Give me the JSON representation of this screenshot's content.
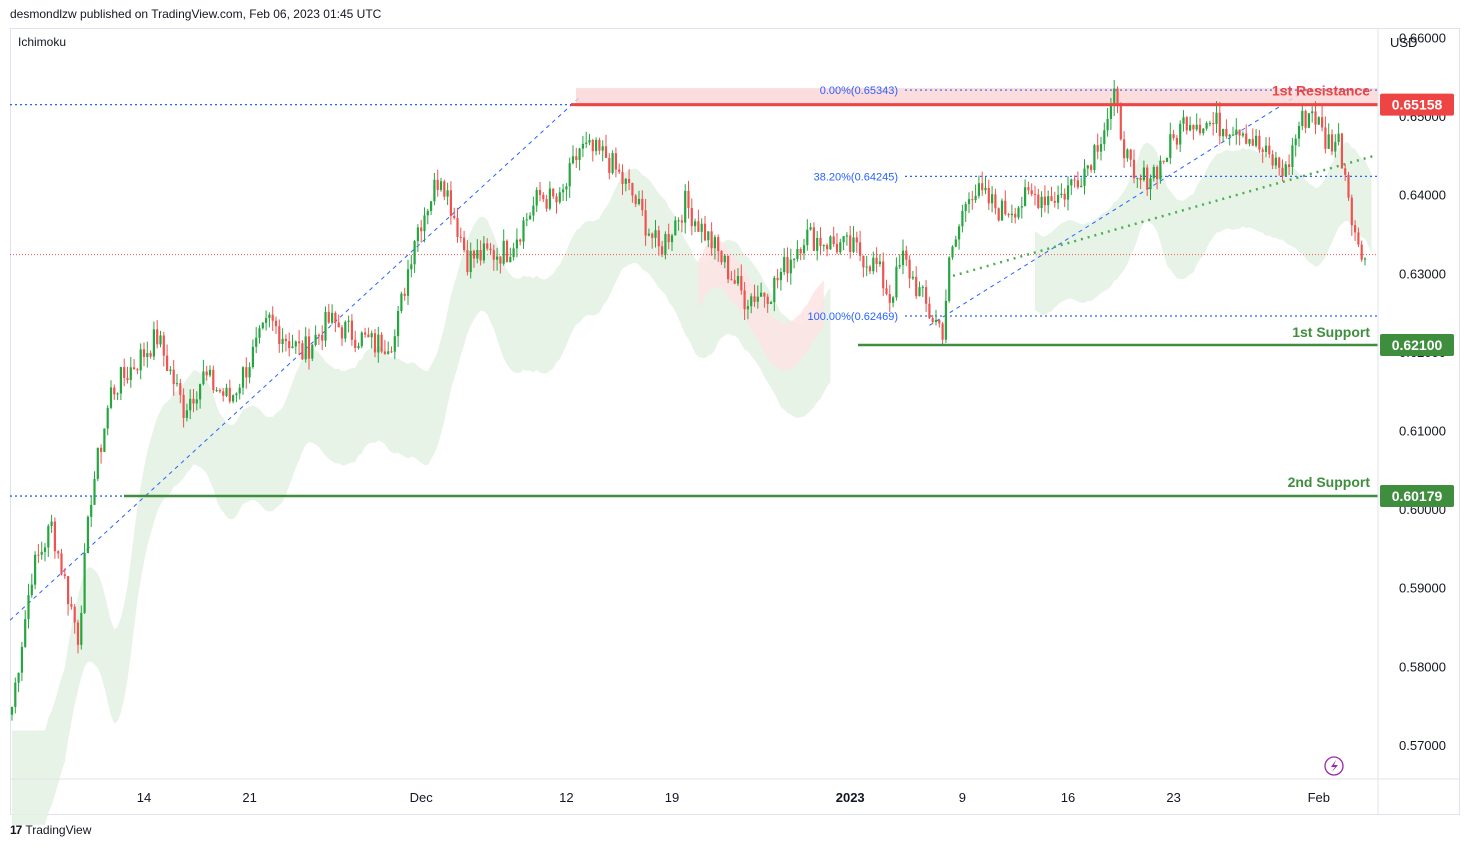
{
  "header": {
    "published_by": "desmondlzw published on TradingView.com, Feb 06, 2023 01:45 UTC"
  },
  "indicator_label": "Ichimoku",
  "currency_label": "USD",
  "footer": {
    "logo_text": "17",
    "brand": "TradingView"
  },
  "colors": {
    "bull": "#26a640",
    "bear": "#ef5350",
    "resistance": "#ef4444",
    "support": "#3e8e3e",
    "fib": "#2962ff",
    "cloud_bull": "#e3f1e3",
    "cloud_bear": "#fde3e3",
    "trend_dotted": "#4caf50"
  },
  "chart_data": {
    "type": "candlestick",
    "title": "",
    "ylabel": "",
    "ylim": [
      0.5658,
      0.6612
    ],
    "y_ticks": [
      "0.66000",
      "0.65000",
      "0.64000",
      "0.63000",
      "0.62000",
      "0.61000",
      "0.60000",
      "0.59000",
      "0.58000",
      "0.57000"
    ],
    "y_tick_values": [
      0.66,
      0.65,
      0.64,
      0.63,
      0.62,
      0.61,
      0.6,
      0.59,
      0.58,
      0.57
    ],
    "x_ticks": [
      "14",
      "21",
      "Dec",
      "12",
      "19",
      "2023",
      "9",
      "16",
      "23",
      "Feb"
    ],
    "x_tick_bars": [
      40,
      72,
      124,
      168,
      200,
      254,
      288,
      320,
      352,
      396
    ],
    "last_price": 0.6325,
    "levels": [
      {
        "name": "1st Resistance",
        "value": 0.65158,
        "label": "0.65158"
      },
      {
        "name": "1st Support",
        "value": 0.621,
        "label": "0.62100"
      },
      {
        "name": "2nd Support",
        "value": 0.60179,
        "label": "0.60179"
      }
    ],
    "fibonacci": [
      {
        "label": "0.00%(0.65343)",
        "value": 0.65343
      },
      {
        "label": "38.20%(0.64245)",
        "value": 0.64245
      },
      {
        "label": "100.00%(0.62469)",
        "value": 0.62469
      }
    ],
    "candles_anchor_close": [
      [
        0,
        0.575
      ],
      [
        6,
        0.592
      ],
      [
        12,
        0.598
      ],
      [
        20,
        0.584
      ],
      [
        24,
        0.602
      ],
      [
        30,
        0.615
      ],
      [
        36,
        0.618
      ],
      [
        44,
        0.622
      ],
      [
        52,
        0.613
      ],
      [
        58,
        0.617
      ],
      [
        66,
        0.614
      ],
      [
        78,
        0.624
      ],
      [
        88,
        0.62
      ],
      [
        96,
        0.624
      ],
      [
        110,
        0.621
      ],
      [
        116,
        0.622
      ],
      [
        122,
        0.635
      ],
      [
        130,
        0.643
      ],
      [
        138,
        0.632
      ],
      [
        150,
        0.633
      ],
      [
        160,
        0.64
      ],
      [
        166,
        0.639
      ],
      [
        172,
        0.646
      ],
      [
        180,
        0.645
      ],
      [
        188,
        0.64
      ],
      [
        196,
        0.633
      ],
      [
        204,
        0.639
      ],
      [
        212,
        0.634
      ],
      [
        222,
        0.627
      ],
      [
        230,
        0.628
      ],
      [
        240,
        0.635
      ],
      [
        248,
        0.634
      ],
      [
        256,
        0.633
      ],
      [
        262,
        0.631
      ],
      [
        266,
        0.627
      ],
      [
        270,
        0.632
      ],
      [
        278,
        0.625
      ],
      [
        282,
        0.623
      ],
      [
        284,
        0.631
      ],
      [
        290,
        0.641
      ],
      [
        300,
        0.638
      ],
      [
        310,
        0.64
      ],
      [
        318,
        0.64
      ],
      [
        326,
        0.644
      ],
      [
        334,
        0.652
      ],
      [
        340,
        0.641
      ],
      [
        348,
        0.644
      ],
      [
        356,
        0.65
      ],
      [
        364,
        0.649
      ],
      [
        372,
        0.649
      ],
      [
        380,
        0.645
      ],
      [
        386,
        0.643
      ],
      [
        390,
        0.649
      ],
      [
        394,
        0.651
      ],
      [
        398,
        0.647
      ],
      [
        402,
        0.647
      ],
      [
        404,
        0.643
      ],
      [
        406,
        0.638
      ],
      [
        408,
        0.633
      ],
      [
        410,
        0.632
      ]
    ]
  }
}
